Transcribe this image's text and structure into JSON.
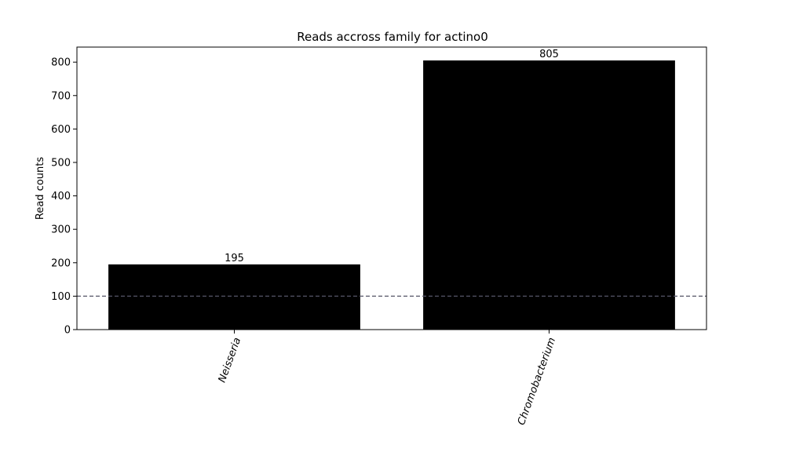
{
  "chart_data": {
    "type": "bar",
    "title": "Reads accross family for actino0",
    "xlabel": "",
    "ylabel": "Read counts",
    "categories": [
      "Neisseria",
      "Chromobacterium"
    ],
    "values": [
      195,
      805
    ],
    "value_labels": [
      "195",
      "805"
    ],
    "ylim": [
      0,
      845
    ],
    "yticks": [
      0,
      100,
      200,
      300,
      400,
      500,
      600,
      700,
      800
    ],
    "threshold": 100,
    "grid": false,
    "legend": "none",
    "colors": {
      "bar": "#000000",
      "threshold": "#555566",
      "axes": "#000000",
      "background": "#ffffff"
    }
  }
}
